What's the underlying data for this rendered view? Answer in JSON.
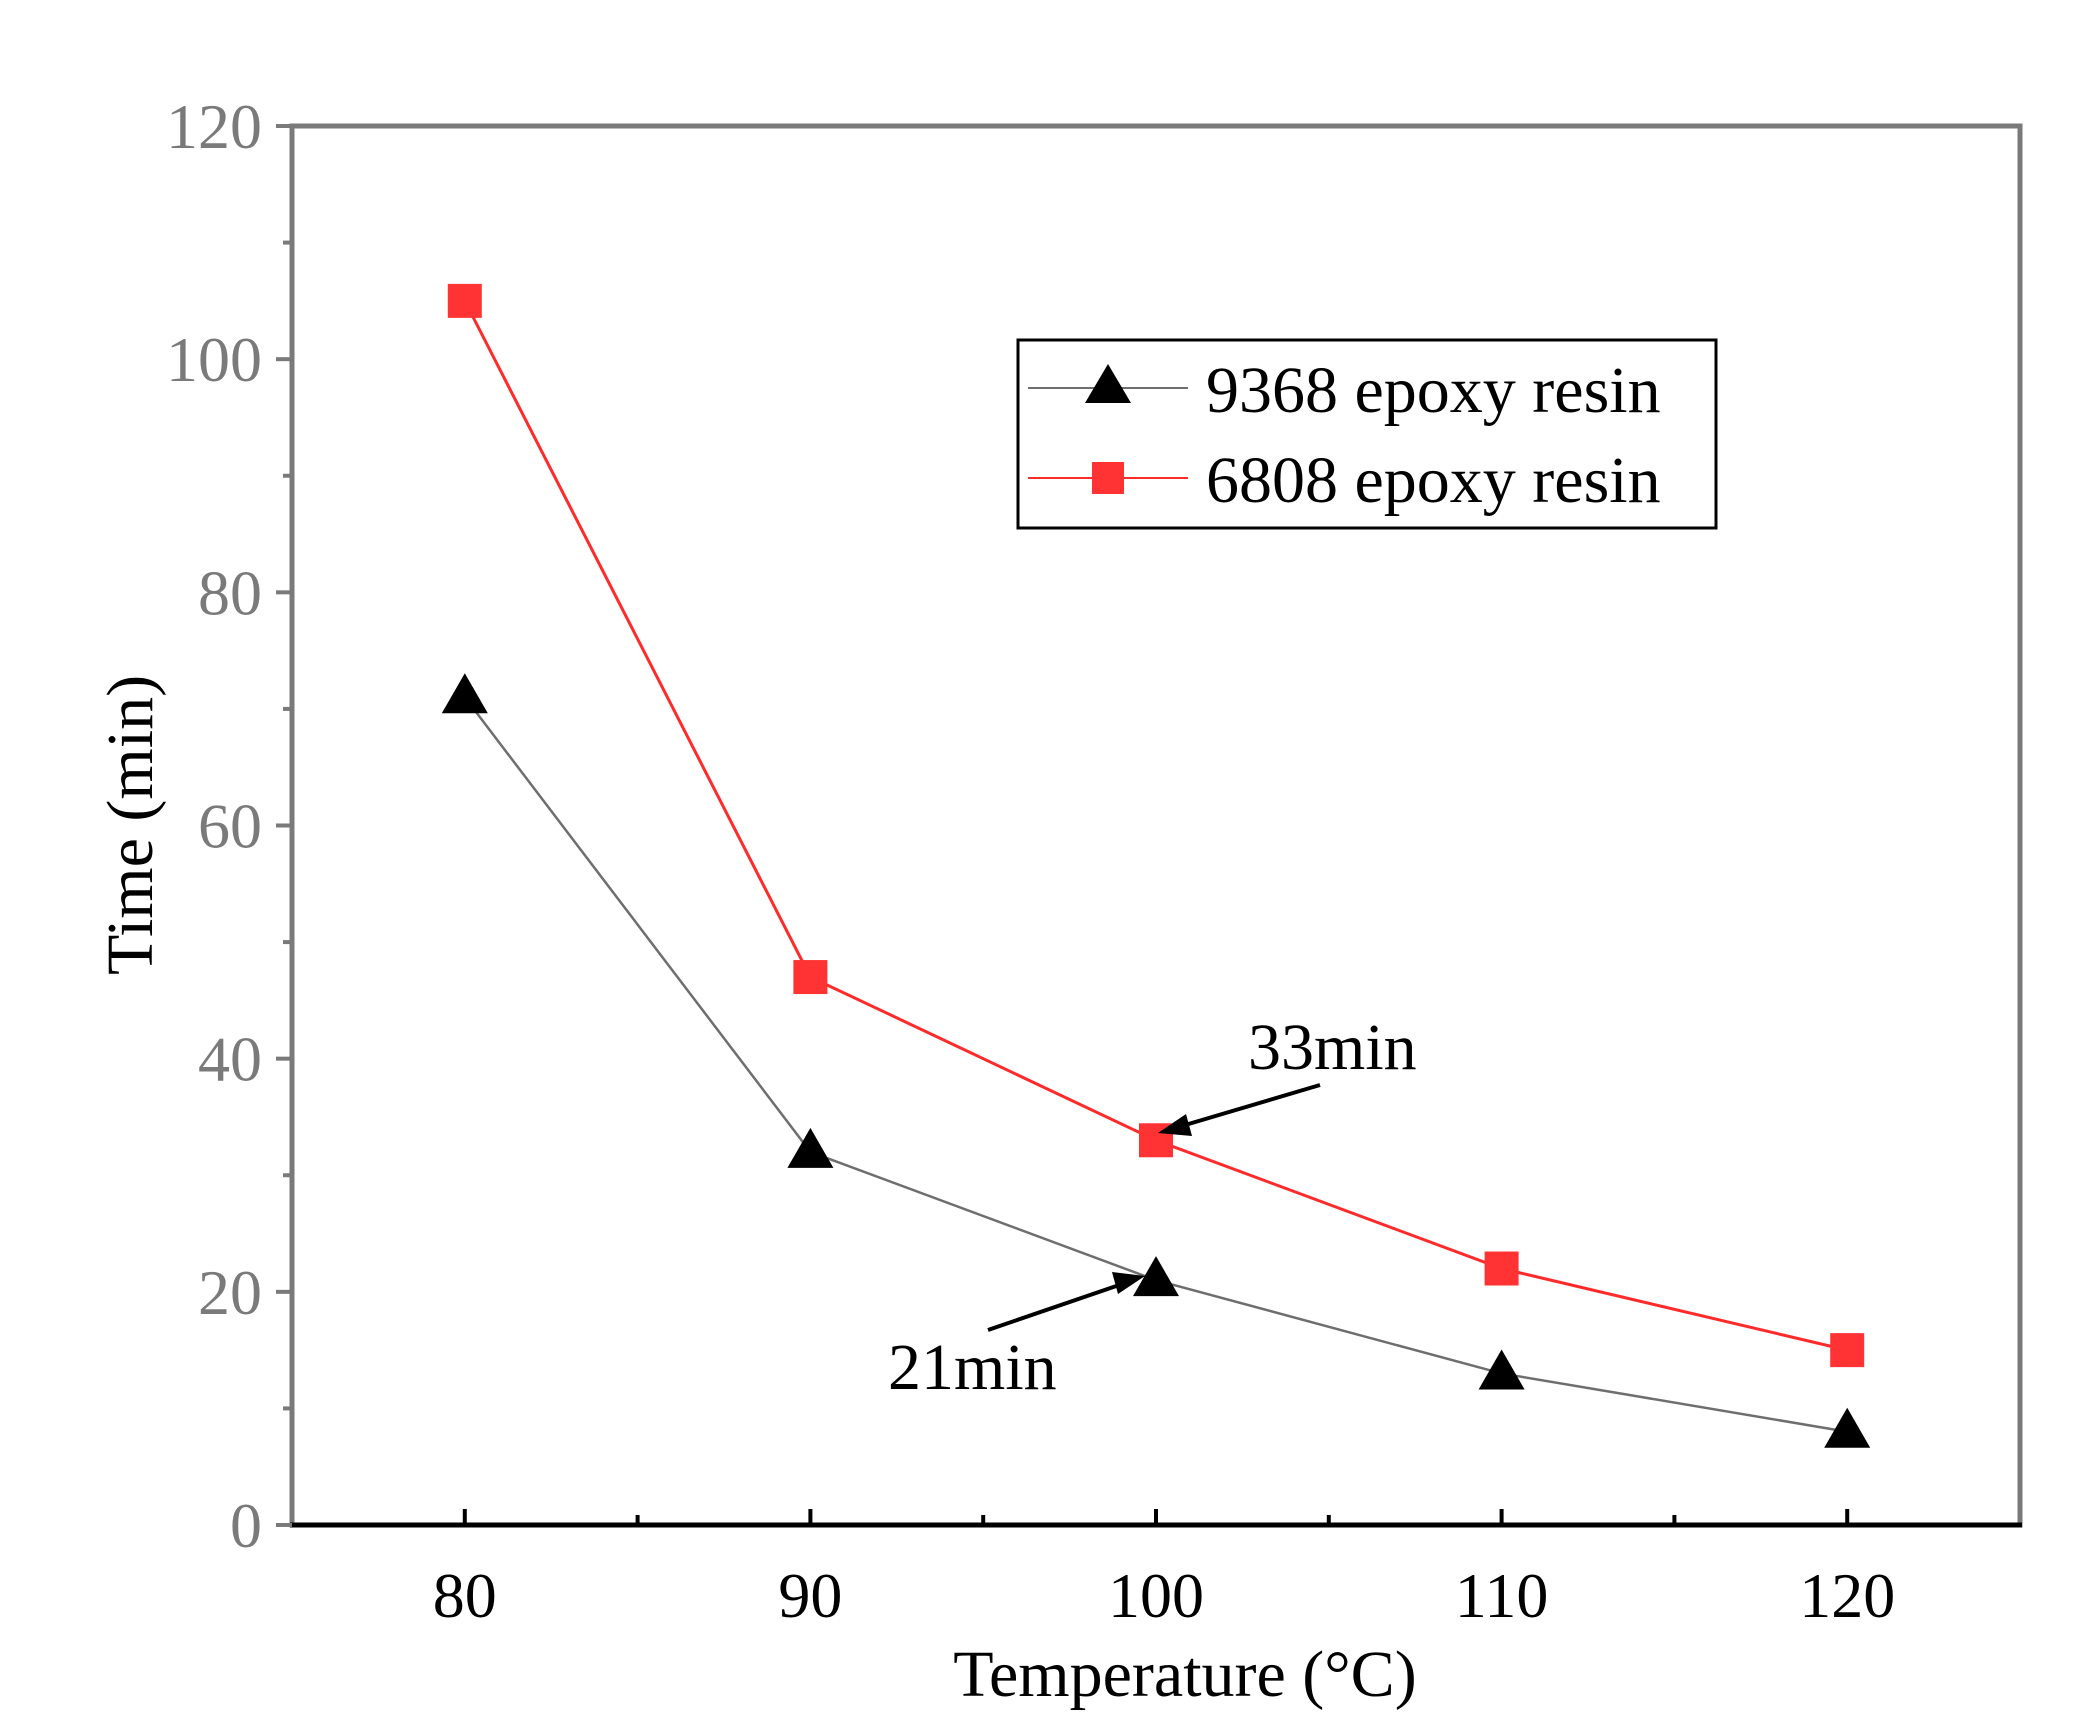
{
  "chart_data": {
    "type": "line",
    "title": "",
    "xlabel": "Temperature (°C)",
    "ylabel": "Time (min)",
    "x": [
      80,
      90,
      100,
      110,
      120
    ],
    "xlim": [
      75,
      125
    ],
    "ylim": [
      0,
      120
    ],
    "x_ticks": [
      "80",
      "90",
      "100",
      "110",
      "120"
    ],
    "y_ticks": [
      "0",
      "20",
      "40",
      "60",
      "80",
      "100",
      "120"
    ],
    "grid": false,
    "legend_position": "top-right",
    "series": [
      {
        "name": "9368 epoxy resin",
        "marker": "triangle",
        "color": "#6e6e6e",
        "marker_color": "#000000",
        "values": [
          71,
          32,
          21,
          13,
          8
        ]
      },
      {
        "name": "6808 epoxy resin",
        "marker": "square",
        "color": "#ff2a2a",
        "marker_color": "#ff3333",
        "values": [
          105,
          47,
          33,
          22,
          15
        ]
      }
    ],
    "annotations": [
      {
        "text": "33min",
        "x": 100,
        "y": 33,
        "series": "6808 epoxy resin"
      },
      {
        "text": "21min",
        "x": 100,
        "y": 21,
        "series": "9368 epoxy resin"
      }
    ]
  }
}
